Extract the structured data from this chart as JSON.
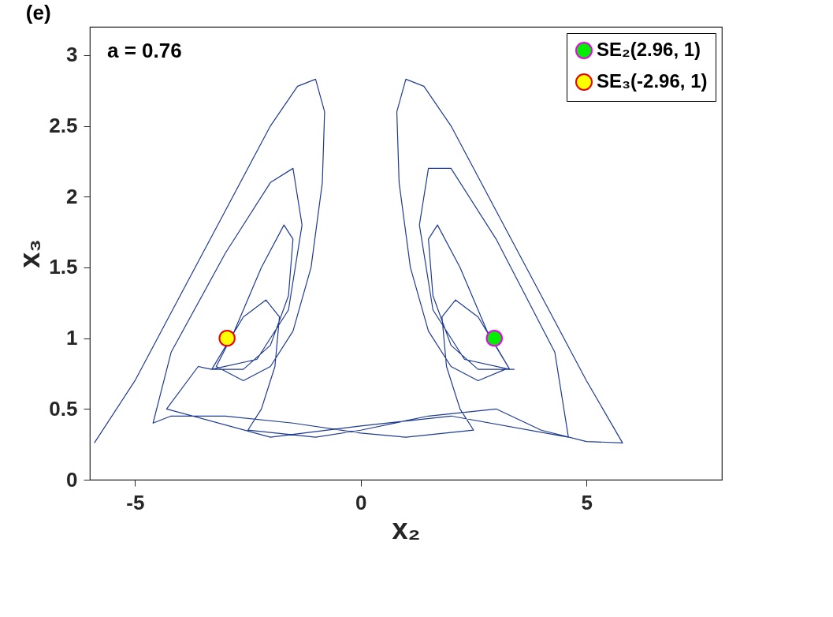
{
  "chart_data": {
    "type": "line",
    "title": "(e)",
    "xlabel": "x₂",
    "ylabel": "x₃",
    "xlim": [
      -6,
      8
    ],
    "ylim": [
      0,
      3.2
    ],
    "xticks": [
      -5,
      0,
      5
    ],
    "yticks": [
      0,
      0.5,
      1,
      1.5,
      2,
      2.5,
      3
    ],
    "legend": "top right",
    "grid": false,
    "annotations": [
      "a = 0.76"
    ],
    "series": [
      {
        "color": "#1f3a93",
        "x": [
          -5.9,
          -5.0,
          -4.0,
          -3.0,
          -2.0,
          -1.4,
          -1.0,
          -0.8,
          -0.85,
          -1.1,
          -1.5,
          -2.0,
          -2.6,
          -3.2,
          -2.8,
          -2.2,
          -1.7,
          -1.5,
          -1.6,
          -2.0,
          -2.6,
          -3.3,
          -2.6,
          -2.1,
          -1.8,
          -1.9,
          -2.2,
          -2.5,
          -1.0,
          0,
          1.5,
          3.0,
          4.0,
          5.0,
          5.8,
          5.0,
          4.0,
          3.0,
          2.0,
          1.4,
          1.0,
          0.8,
          0.85,
          1.1,
          1.5,
          2.0,
          2.6,
          3.2,
          3.4,
          2.6,
          2.0,
          1.6,
          1.5,
          1.7,
          2.2,
          2.8,
          3.3,
          2.6,
          2.1,
          1.8,
          1.9,
          2.2,
          2.5,
          1.0,
          0,
          -1.5,
          -3.0,
          -4.2,
          -4.6,
          -4.2,
          -3.0,
          -2.0,
          -1.5,
          -1.3,
          -1.6,
          -2.3,
          -3.3,
          -3.6,
          -4.3,
          -2.0,
          0,
          2.0,
          4.6,
          4.3,
          3.0,
          2.0,
          1.5,
          1.3,
          1.6,
          2.3,
          3.3
        ],
        "values": [
          0.26,
          0.7,
          1.3,
          1.9,
          2.5,
          2.78,
          2.83,
          2.6,
          2.1,
          1.5,
          1.05,
          0.8,
          0.7,
          0.8,
          1.05,
          1.5,
          1.8,
          1.7,
          1.3,
          0.95,
          0.78,
          0.78,
          1.15,
          1.27,
          1.15,
          0.8,
          0.5,
          0.35,
          0.3,
          0.35,
          0.45,
          0.5,
          0.35,
          0.27,
          0.26,
          0.7,
          1.3,
          1.9,
          2.5,
          2.78,
          2.83,
          2.6,
          2.1,
          1.5,
          1.05,
          0.8,
          0.7,
          0.78,
          0.78,
          0.78,
          0.95,
          1.3,
          1.7,
          1.8,
          1.5,
          1.05,
          0.78,
          1.15,
          1.27,
          1.15,
          0.8,
          0.5,
          0.35,
          0.3,
          0.33,
          0.4,
          0.45,
          0.45,
          0.4,
          0.9,
          1.6,
          2.1,
          2.2,
          1.8,
          1.2,
          0.85,
          0.78,
          0.8,
          0.5,
          0.3,
          0.38,
          0.45,
          0.3,
          0.9,
          1.7,
          2.2,
          2.2,
          1.8,
          1.2,
          0.85,
          0.78
        ]
      },
      {
        "type": "scatter",
        "name": "SE₂(2.96, 1)",
        "color": "#00ee00",
        "x": [
          2.96
        ],
        "values": [
          1
        ]
      },
      {
        "type": "scatter",
        "name": "SE₃(-2.96, 1)",
        "color": "#ffff00",
        "x": [
          -2.96
        ],
        "values": [
          1
        ]
      }
    ]
  }
}
